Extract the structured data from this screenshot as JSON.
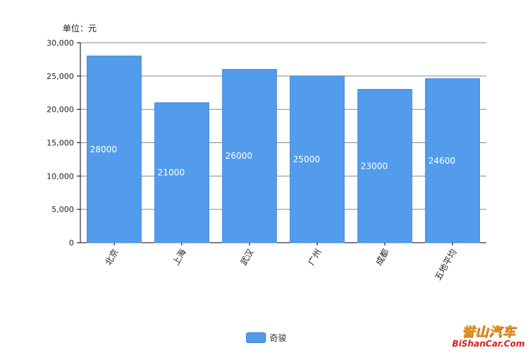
{
  "unit_label": "单位：元",
  "colors": {
    "bar": "#539ceb",
    "bar_edge": "#3f86d6",
    "grid": "#888888",
    "axis": "#000000",
    "value_label": "#ffffff",
    "tick_label": "#222222"
  },
  "chart_data": {
    "type": "bar",
    "title": "",
    "xlabel": "",
    "ylabel": "",
    "categories": [
      "北京",
      "上海",
      "武汉",
      "广州",
      "成都",
      "五地平均"
    ],
    "series": [
      {
        "name": "奇骏",
        "values": [
          28000,
          21000,
          26000,
          25000,
          23000,
          24600
        ]
      }
    ],
    "value_labels": [
      "28000",
      "21000",
      "26000",
      "25000",
      "23000",
      "24600"
    ],
    "ylim": [
      0,
      30000
    ],
    "yticks": [
      0,
      5000,
      10000,
      15000,
      20000,
      25000,
      30000
    ],
    "ytick_labels": [
      "0",
      "5,000",
      "10,000",
      "15,000",
      "20,000",
      "25,000",
      "30,000"
    ],
    "grid": true,
    "legend_position": "bottom-center"
  },
  "legend": {
    "label": "奇骏"
  },
  "watermark": {
    "top": "誉山汽车",
    "bottom": "BiShanCar.Com"
  }
}
